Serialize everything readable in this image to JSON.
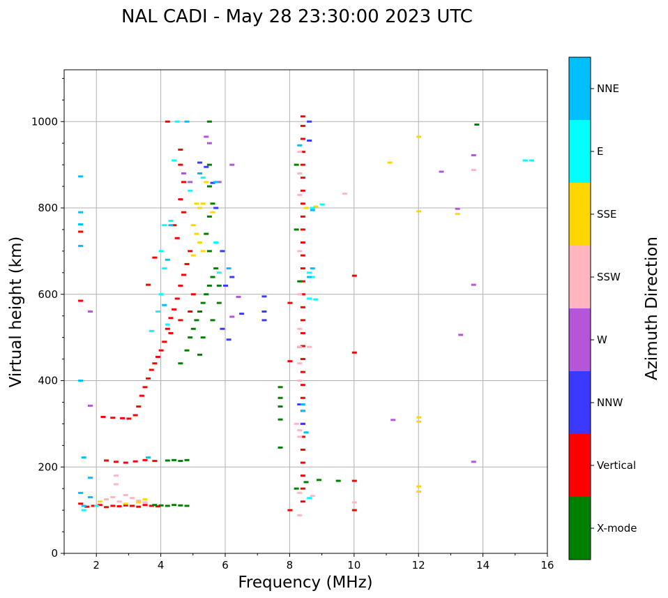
{
  "chart_data": {
    "type": "scatter",
    "title": "NAL CADI - May 28 23:30:00 2023 UTC",
    "xlabel": "Frequency (MHz)",
    "ylabel": "Virtual height (km)",
    "xlim": [
      1,
      16
    ],
    "ylim": [
      0,
      1120
    ],
    "xticks": [
      2,
      4,
      6,
      8,
      10,
      12,
      14,
      16
    ],
    "yticks": [
      0,
      200,
      400,
      600,
      800,
      1000
    ],
    "grid": true,
    "colorbar": {
      "label": "Azimuth Direction",
      "categories": [
        {
          "name": "X-mode",
          "color": "#008000"
        },
        {
          "name": "Vertical",
          "color": "#ff0000"
        },
        {
          "name": "NNW",
          "color": "#3a3aff"
        },
        {
          "name": "W",
          "color": "#b556d9"
        },
        {
          "name": "SSW",
          "color": "#ffb6c1"
        },
        {
          "name": "SSE",
          "color": "#ffd700"
        },
        {
          "name": "E",
          "color": "#00ffff"
        },
        {
          "name": "NNE",
          "color": "#00bfff"
        }
      ]
    },
    "series": [
      {
        "name": "Vertical",
        "points": [
          [
            1.5,
            115
          ],
          [
            1.7,
            108
          ],
          [
            1.9,
            110
          ],
          [
            2.1,
            112
          ],
          [
            2.3,
            107
          ],
          [
            2.5,
            110
          ],
          [
            2.7,
            109
          ],
          [
            2.9,
            111
          ],
          [
            3.1,
            110
          ],
          [
            3.3,
            108
          ],
          [
            3.5,
            112
          ],
          [
            3.7,
            110
          ],
          [
            3.9,
            109
          ],
          [
            2.3,
            215
          ],
          [
            2.6,
            212
          ],
          [
            2.9,
            210
          ],
          [
            3.2,
            213
          ],
          [
            3.5,
            216
          ],
          [
            3.8,
            214
          ],
          [
            2.2,
            316
          ],
          [
            2.5,
            314
          ],
          [
            2.8,
            313
          ],
          [
            3.0,
            312
          ],
          [
            3.2,
            320
          ],
          [
            3.3,
            340
          ],
          [
            3.4,
            365
          ],
          [
            3.5,
            385
          ],
          [
            3.6,
            405
          ],
          [
            3.7,
            425
          ],
          [
            3.8,
            440
          ],
          [
            3.9,
            455
          ],
          [
            4.0,
            470
          ],
          [
            4.1,
            490
          ],
          [
            4.2,
            520
          ],
          [
            4.3,
            545
          ],
          [
            4.4,
            565
          ],
          [
            4.5,
            590
          ],
          [
            4.6,
            620
          ],
          [
            4.7,
            645
          ],
          [
            4.8,
            670
          ],
          [
            4.9,
            700
          ],
          [
            4.5,
            730
          ],
          [
            4.4,
            760
          ],
          [
            4.7,
            790
          ],
          [
            4.6,
            820
          ],
          [
            4.7,
            860
          ],
          [
            4.6,
            900
          ],
          [
            4.6,
            935
          ],
          [
            4.2,
            1000
          ],
          [
            1.5,
            585
          ],
          [
            1.5,
            745
          ],
          [
            3.6,
            622
          ],
          [
            3.8,
            685
          ],
          [
            4.3,
            510
          ],
          [
            4.6,
            540
          ],
          [
            4.9,
            560
          ],
          [
            5.0,
            600
          ],
          [
            8.0,
            100
          ],
          [
            8.4,
            1012
          ],
          [
            8.4,
            990
          ],
          [
            8.4,
            960
          ],
          [
            8.4,
            930
          ],
          [
            8.4,
            900
          ],
          [
            8.4,
            870
          ],
          [
            8.4,
            840
          ],
          [
            8.4,
            810
          ],
          [
            8.4,
            780
          ],
          [
            8.4,
            750
          ],
          [
            8.4,
            720
          ],
          [
            8.4,
            690
          ],
          [
            8.4,
            660
          ],
          [
            8.4,
            630
          ],
          [
            8.4,
            600
          ],
          [
            8.4,
            570
          ],
          [
            8.4,
            540
          ],
          [
            8.4,
            510
          ],
          [
            8.4,
            480
          ],
          [
            8.4,
            450
          ],
          [
            8.4,
            420
          ],
          [
            8.4,
            390
          ],
          [
            8.4,
            360
          ],
          [
            8.4,
            330
          ],
          [
            8.4,
            300
          ],
          [
            8.4,
            270
          ],
          [
            8.4,
            240
          ],
          [
            8.4,
            210
          ],
          [
            8.4,
            180
          ],
          [
            8.4,
            150
          ],
          [
            8.4,
            120
          ],
          [
            8.0,
            445
          ],
          [
            8.0,
            580
          ],
          [
            10.0,
            643
          ],
          [
            10.0,
            465
          ],
          [
            10.0,
            168
          ],
          [
            10.0,
            100
          ]
        ]
      },
      {
        "name": "X-mode",
        "points": [
          [
            3.8,
            112
          ],
          [
            4.0,
            111
          ],
          [
            4.2,
            110
          ],
          [
            4.4,
            112
          ],
          [
            4.6,
            111
          ],
          [
            4.8,
            110
          ],
          [
            4.2,
            215
          ],
          [
            4.4,
            216
          ],
          [
            4.6,
            214
          ],
          [
            4.8,
            216
          ],
          [
            4.6,
            440
          ],
          [
            4.8,
            470
          ],
          [
            4.9,
            500
          ],
          [
            5.0,
            520
          ],
          [
            5.1,
            540
          ],
          [
            5.2,
            560
          ],
          [
            5.3,
            580
          ],
          [
            5.4,
            600
          ],
          [
            5.5,
            620
          ],
          [
            5.6,
            640
          ],
          [
            5.7,
            660
          ],
          [
            5.8,
            620
          ],
          [
            5.5,
            700
          ],
          [
            5.4,
            740
          ],
          [
            5.5,
            780
          ],
          [
            5.6,
            810
          ],
          [
            5.5,
            850
          ],
          [
            5.5,
            900
          ],
          [
            5.5,
            1000
          ],
          [
            5.2,
            460
          ],
          [
            5.3,
            500
          ],
          [
            5.6,
            540
          ],
          [
            5.8,
            580
          ],
          [
            8.2,
            750
          ],
          [
            8.2,
            900
          ],
          [
            8.3,
            478
          ],
          [
            8.3,
            630
          ],
          [
            7.7,
            385
          ],
          [
            7.7,
            360
          ],
          [
            7.7,
            340
          ],
          [
            7.7,
            310
          ],
          [
            7.7,
            245
          ],
          [
            8.2,
            150
          ],
          [
            8.5,
            165
          ],
          [
            8.9,
            170
          ],
          [
            9.5,
            168
          ],
          [
            13.8,
            993
          ]
        ]
      },
      {
        "name": "NNW",
        "points": [
          [
            5.6,
            858
          ],
          [
            5.4,
            895
          ],
          [
            5.2,
            905
          ],
          [
            5.7,
            800
          ],
          [
            5.9,
            700
          ],
          [
            6.0,
            620
          ],
          [
            6.2,
            640
          ],
          [
            5.9,
            520
          ],
          [
            6.1,
            495
          ],
          [
            6.5,
            555
          ],
          [
            7.2,
            595
          ],
          [
            7.2,
            560
          ],
          [
            7.2,
            540
          ],
          [
            8.6,
            1000
          ],
          [
            8.6,
            956
          ],
          [
            8.3,
            345
          ],
          [
            8.4,
            300
          ]
        ]
      },
      {
        "name": "W",
        "points": [
          [
            6.2,
            548
          ],
          [
            6.4,
            594
          ],
          [
            6.2,
            900
          ],
          [
            5.8,
            860
          ],
          [
            4.9,
            860
          ],
          [
            5.4,
            965
          ],
          [
            5.5,
            950
          ],
          [
            4.7,
            880
          ],
          [
            13.7,
            922
          ],
          [
            13.7,
            622
          ],
          [
            13.3,
            506
          ],
          [
            13.2,
            798
          ],
          [
            12.7,
            884
          ],
          [
            11.2,
            309
          ],
          [
            13.7,
            212
          ],
          [
            1.8,
            560
          ],
          [
            1.8,
            342
          ]
        ]
      },
      {
        "name": "SSW",
        "points": [
          [
            2.3,
            125
          ],
          [
            2.5,
            130
          ],
          [
            2.7,
            120
          ],
          [
            2.9,
            135
          ],
          [
            3.1,
            128
          ],
          [
            3.3,
            122
          ],
          [
            3.5,
            118
          ],
          [
            2.6,
            160
          ],
          [
            2.6,
            180
          ],
          [
            8.3,
            930
          ],
          [
            8.3,
            880
          ],
          [
            8.3,
            830
          ],
          [
            8.3,
            700
          ],
          [
            8.3,
            600
          ],
          [
            8.3,
            520
          ],
          [
            8.3,
            478
          ],
          [
            8.3,
            440
          ],
          [
            8.3,
            400
          ],
          [
            8.3,
            285
          ],
          [
            8.3,
            270
          ],
          [
            8.3,
            140
          ],
          [
            8.3,
            88
          ],
          [
            8.2,
            300
          ],
          [
            8.6,
            478
          ],
          [
            8.7,
            133
          ],
          [
            9.7,
            833
          ],
          [
            10.0,
            118
          ],
          [
            13.7,
            888
          ]
        ]
      },
      {
        "name": "SSE",
        "points": [
          [
            5.0,
            760
          ],
          [
            5.1,
            740
          ],
          [
            5.2,
            720
          ],
          [
            5.3,
            700
          ],
          [
            5.2,
            800
          ],
          [
            5.3,
            810
          ],
          [
            5.0,
            690
          ],
          [
            5.1,
            810
          ],
          [
            5.4,
            860
          ],
          [
            5.6,
            790
          ],
          [
            3.5,
            125
          ],
          [
            3.3,
            118
          ],
          [
            2.9,
            115
          ],
          [
            2.1,
            120
          ],
          [
            8.5,
            800
          ],
          [
            8.8,
            803
          ],
          [
            11.1,
            905
          ],
          [
            12.0,
            965
          ],
          [
            12.0,
            792
          ],
          [
            12.0,
            315
          ],
          [
            12.0,
            305
          ],
          [
            12.0,
            155
          ],
          [
            12.0,
            143
          ],
          [
            13.2,
            786
          ]
        ]
      },
      {
        "name": "E",
        "points": [
          [
            4.3,
            770
          ],
          [
            4.1,
            760
          ],
          [
            4.0,
            700
          ],
          [
            4.1,
            660
          ],
          [
            4.0,
            600
          ],
          [
            3.9,
            560
          ],
          [
            4.2,
            530
          ],
          [
            4.4,
            910
          ],
          [
            4.5,
            1000
          ],
          [
            4.9,
            840
          ],
          [
            5.3,
            870
          ],
          [
            5.7,
            720
          ],
          [
            5.8,
            650
          ],
          [
            3.7,
            515
          ],
          [
            8.6,
            650
          ],
          [
            8.7,
            640
          ],
          [
            8.7,
            800
          ],
          [
            8.8,
            588
          ],
          [
            8.6,
            590
          ],
          [
            9.0,
            808
          ],
          [
            15.3,
            910
          ],
          [
            15.5,
            910
          ],
          [
            8.6,
            128
          ],
          [
            1.6,
            100
          ],
          [
            2.0,
            110
          ]
        ]
      },
      {
        "name": "NNE",
        "points": [
          [
            1.5,
            873
          ],
          [
            1.5,
            790
          ],
          [
            1.5,
            762
          ],
          [
            1.5,
            712
          ],
          [
            1.5,
            400
          ],
          [
            1.6,
            222
          ],
          [
            1.5,
            140
          ],
          [
            1.6,
            110
          ],
          [
            1.8,
            130
          ],
          [
            1.8,
            175
          ],
          [
            3.6,
            222
          ],
          [
            4.3,
            760
          ],
          [
            4.2,
            680
          ],
          [
            4.1,
            575
          ],
          [
            5.7,
            860
          ],
          [
            5.2,
            880
          ],
          [
            4.8,
            1000
          ],
          [
            6.1,
            660
          ],
          [
            8.7,
            795
          ],
          [
            8.3,
            945
          ],
          [
            8.4,
            345
          ],
          [
            8.4,
            330
          ],
          [
            8.7,
            660
          ],
          [
            8.6,
            640
          ],
          [
            8.5,
            280
          ]
        ]
      }
    ]
  }
}
